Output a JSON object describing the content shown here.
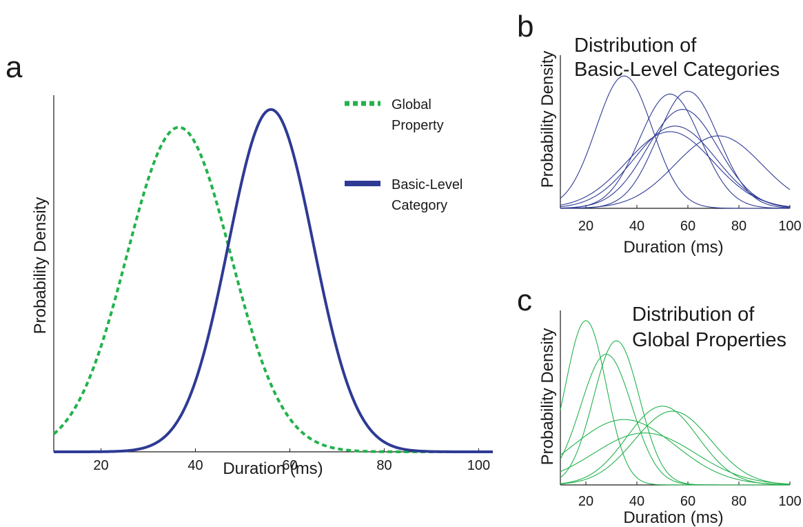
{
  "colors": {
    "global": "#22b24c",
    "basic": "#2e3a94",
    "axis": "#1a1a1a"
  },
  "chart_data": [
    {
      "panel": "a",
      "type": "line",
      "xlabel": "Duration (ms)",
      "ylabel": "Probability Density",
      "xlim": [
        10,
        103
      ],
      "xticks": [
        20,
        40,
        60,
        80,
        100
      ],
      "grid": false,
      "legend_position": "top-right",
      "series": [
        {
          "name": "Global Property",
          "name_lines": [
            "Global",
            "Property"
          ],
          "style": "dashed",
          "color": "#22b24c",
          "mean": 36.5,
          "sd": 11,
          "peak": 0.91
        },
        {
          "name": "Basic-Level Category",
          "name_lines": [
            "Basic-Level",
            "Category"
          ],
          "style": "solid",
          "color": "#2e3a94",
          "mean": 56,
          "sd": 9,
          "peak": 0.96
        }
      ]
    },
    {
      "panel": "b",
      "type": "line",
      "title_lines": [
        "Distribution of",
        "Basic-Level Categories"
      ],
      "xlabel": "Duration (ms)",
      "ylabel": "Probability Density",
      "xlim": [
        10,
        100
      ],
      "xticks": [
        20,
        40,
        60,
        80,
        100
      ],
      "grid": false,
      "color": "#2e3a94",
      "series": [
        {
          "mean": 35,
          "sd": 11,
          "peak": 0.95
        },
        {
          "mean": 53,
          "sd": 12,
          "peak": 0.82
        },
        {
          "mean": 60,
          "sd": 12,
          "peak": 0.84
        },
        {
          "mean": 58,
          "sd": 14,
          "peak": 0.71
        },
        {
          "mean": 55,
          "sd": 16,
          "peak": 0.59
        },
        {
          "mean": 53,
          "sd": 17,
          "peak": 0.55
        },
        {
          "mean": 72,
          "sd": 17,
          "peak": 0.52
        }
      ]
    },
    {
      "panel": "c",
      "type": "line",
      "title_lines": [
        "Distribution of",
        "Global Properties"
      ],
      "xlabel": "Duration (ms)",
      "ylabel": "Probability Density",
      "xlim": [
        10,
        100
      ],
      "xticks": [
        20,
        40,
        60,
        80,
        100
      ],
      "grid": false,
      "color": "#22b24c",
      "series": [
        {
          "mean": 20,
          "sd": 8,
          "peak": 0.98
        },
        {
          "mean": 32,
          "sd": 9,
          "peak": 0.86
        },
        {
          "mean": 28,
          "sd": 10,
          "peak": 0.78
        },
        {
          "mean": 50,
          "sd": 14,
          "peak": 0.47
        },
        {
          "mean": 54,
          "sd": 15,
          "peak": 0.44
        },
        {
          "mean": 35,
          "sd": 20,
          "peak": 0.39
        },
        {
          "mean": 43,
          "sd": 20,
          "peak": 0.31
        }
      ]
    }
  ]
}
